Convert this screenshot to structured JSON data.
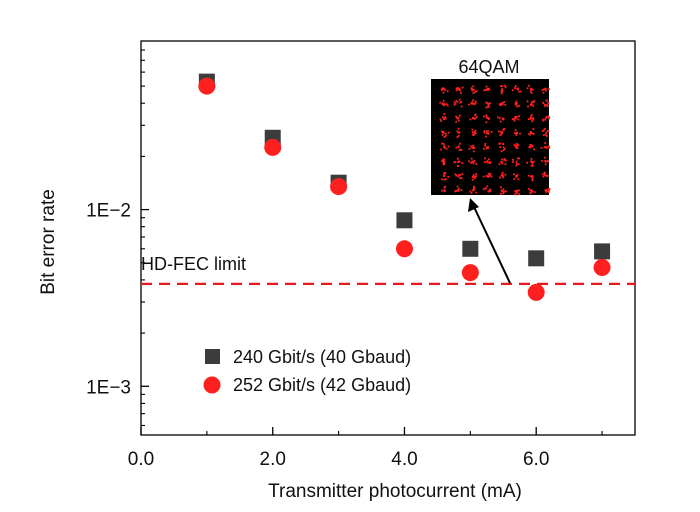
{
  "chart_data": {
    "type": "scatter",
    "xlabel": "Transmitter photocurrent  (mA)",
    "ylabel": "Bit error rate",
    "x_ticks": [
      "0.0",
      "2.0",
      "4.0",
      "6.0"
    ],
    "y_ticks": [
      "1E−3",
      "1E−2"
    ],
    "xlim": [
      0,
      7.5
    ],
    "ylim": [
      0.00053,
      0.09
    ],
    "yscale": "log",
    "grid": false,
    "legend_position": "bottom-left",
    "series": [
      {
        "name": "240 Gbit/s (40 Gbaud)",
        "marker": "square",
        "color": "#3c3c3c",
        "x": [
          1,
          2,
          3,
          4,
          5,
          6,
          7
        ],
        "y": [
          0.053,
          0.0255,
          0.0142,
          0.0087,
          0.006,
          0.0053,
          0.0058
        ]
      },
      {
        "name": "252 Gbit/s (42 Gbaud)",
        "marker": "circle",
        "color": "#ff1f1f",
        "x": [
          1,
          2,
          3,
          4,
          5,
          6,
          7
        ],
        "y": [
          0.05,
          0.0225,
          0.0135,
          0.006,
          0.0044,
          0.0034,
          0.0047
        ]
      }
    ],
    "reference_line": {
      "label": "HD-FEC limit",
      "y": 0.0038,
      "color": "#e8191e",
      "style": "dashed"
    },
    "inset": {
      "label": "64QAM",
      "background": "#000000",
      "dot_color": "#ff2020"
    }
  }
}
